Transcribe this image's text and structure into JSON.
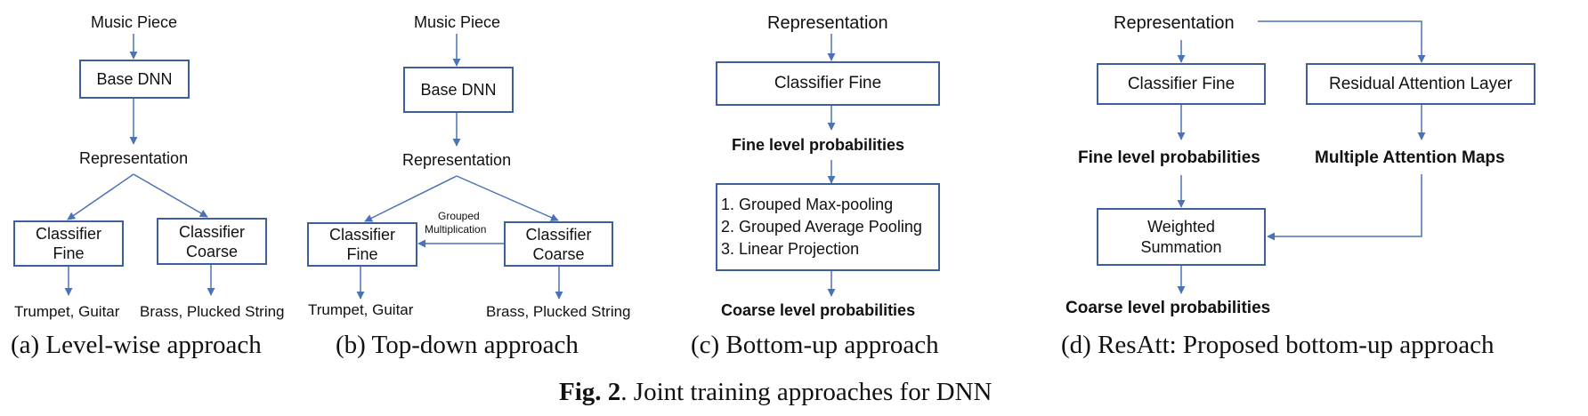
{
  "panel_a": {
    "input": "Music Piece",
    "base": "Base DNN",
    "rep": "Representation",
    "fine_l1": "Classifier",
    "fine_l2": "Fine",
    "coarse_l1": "Classifier",
    "coarse_l2": "Coarse",
    "fine_out": "Trumpet, Guitar",
    "coarse_out": "Brass, Plucked String",
    "caption": "(a) Level-wise approach"
  },
  "panel_b": {
    "input": "Music Piece",
    "base": "Base DNN",
    "rep": "Representation",
    "fine_l1": "Classifier",
    "fine_l2": "Fine",
    "coarse_l1": "Classifier",
    "coarse_l2": "Coarse",
    "grouped_l1": "Grouped",
    "grouped_l2": "Multiplication",
    "fine_out": "Trumpet, Guitar",
    "coarse_out": "Brass, Plucked String",
    "caption": "(b) Top-down approach"
  },
  "panel_c": {
    "input": "Representation",
    "classifier": "Classifier Fine",
    "fine_prob": "Fine level probabilities",
    "ops": [
      "1. Grouped Max-pooling",
      "2. Grouped Average Pooling",
      "3. Linear Projection"
    ],
    "coarse_prob": "Coarse level probabilities",
    "caption": "(c) Bottom-up approach"
  },
  "panel_d": {
    "input": "Representation",
    "classifier": "Classifier Fine",
    "attention_layer": "Residual Attention Layer",
    "fine_prob": "Fine level probabilities",
    "attention_maps": "Multiple Attention Maps",
    "weighted_l1": "Weighted",
    "weighted_l2": "Summation",
    "coarse_prob": "Coarse level probabilities",
    "caption": "(d) ResAtt: Proposed bottom-up approach"
  },
  "figure_caption": {
    "label": "Fig. 2",
    "text": ". Joint training approaches for DNN"
  },
  "colors": {
    "arrow": "#4a72b8",
    "box_border": "#3f5f9a",
    "text": "#111111"
  }
}
